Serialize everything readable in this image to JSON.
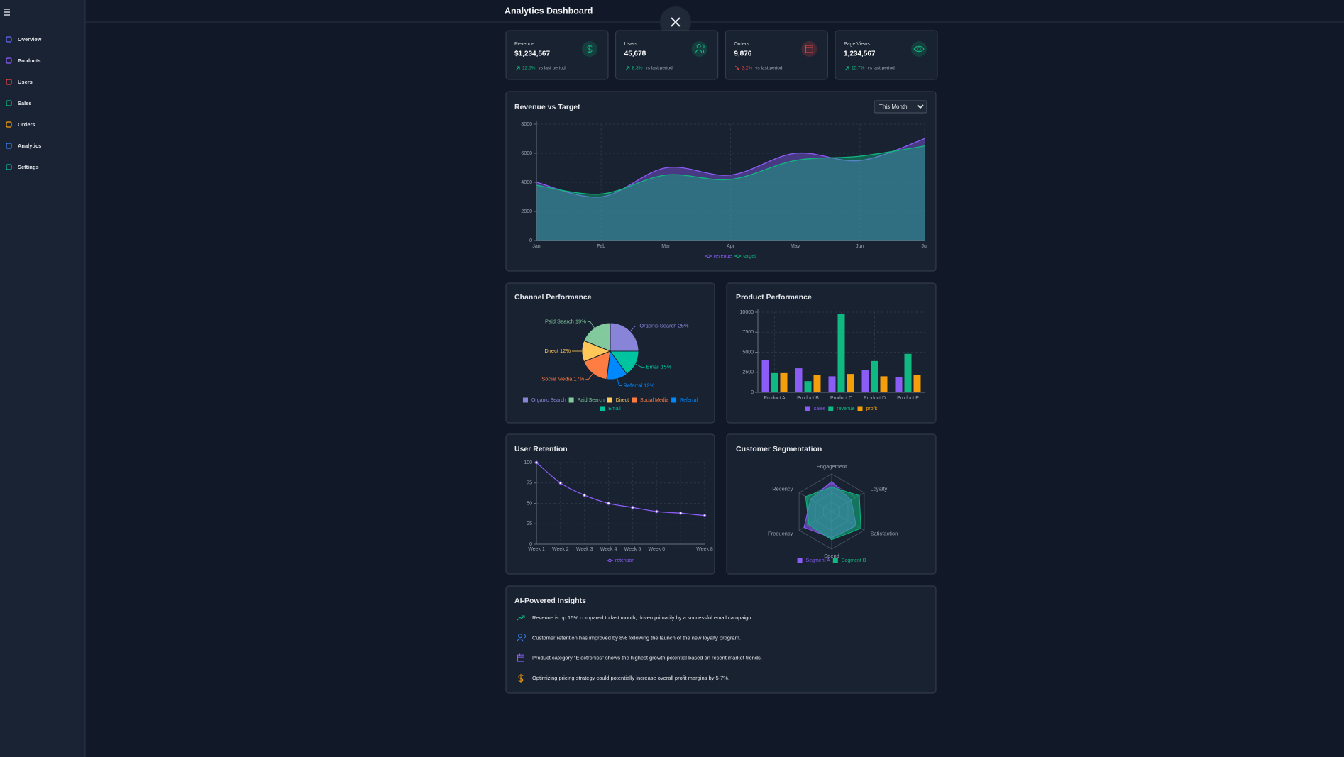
{
  "sidebar": {
    "nav": [
      "Overview",
      "Products",
      "Users",
      "Sales",
      "Orders",
      "Analytics",
      "Settings"
    ]
  },
  "header": {
    "title": "Analytics Dashboard"
  },
  "kpis": [
    {
      "label": "Revenue",
      "value": "$1,234,567",
      "change": "12.5%",
      "note": "vs last period",
      "trend": "up"
    },
    {
      "label": "Users",
      "value": "45,678",
      "change": "8.3%",
      "note": "vs last period",
      "trend": "up"
    },
    {
      "label": "Orders",
      "value": "9,876",
      "change": "3.2%",
      "note": "vs last period",
      "trend": "down"
    },
    {
      "label": "Page Views",
      "value": "1,234,567",
      "change": "15.7%",
      "note": "vs last period",
      "trend": "up"
    }
  ],
  "chart_data": [
    {
      "type": "area",
      "title": "Revenue vs Target",
      "filter": "This Month",
      "categories": [
        "Jan",
        "Feb",
        "Mar",
        "Apr",
        "May",
        "Jun",
        "Jul"
      ],
      "series": [
        {
          "name": "revenue",
          "color": "#8b5cf6",
          "values": [
            4000,
            3000,
            5000,
            4500,
            6000,
            5500,
            7000
          ]
        },
        {
          "name": "target",
          "color": "#10b981",
          "values": [
            3800,
            3200,
            4500,
            4200,
            5500,
            5800,
            6500
          ]
        }
      ],
      "ylim": [
        0,
        8000
      ],
      "yticks": [
        0,
        2000,
        4000,
        6000,
        8000
      ],
      "grid": true
    },
    {
      "type": "pie",
      "title": "Channel Performance",
      "categories": [
        "Organic Search",
        "Paid Search",
        "Direct",
        "Social Media",
        "Referral",
        "Email"
      ],
      "values": [
        25,
        19,
        12,
        17,
        12,
        15
      ],
      "value_labels": [
        "Organic Search 25%",
        "Paid Search 19%",
        "Direct 12%",
        "Social Media 17%",
        "Referral 12%",
        "Email 15%"
      ],
      "colors": [
        "#8884d8",
        "#82ca9d",
        "#ffc658",
        "#ff7c43",
        "#0088fe",
        "#00c49f"
      ]
    },
    {
      "type": "bar",
      "title": "Product Performance",
      "categories": [
        "Product A",
        "Product B",
        "Product C",
        "Product D",
        "Product E"
      ],
      "series": [
        {
          "name": "sales",
          "color": "#8b5cf6",
          "values": [
            4000,
            3000,
            2000,
            2780,
            1890
          ]
        },
        {
          "name": "revenue",
          "color": "#10b981",
          "values": [
            2400,
            1398,
            9800,
            3908,
            4800
          ]
        },
        {
          "name": "profit",
          "color": "#f59e0b",
          "values": [
            2400,
            2210,
            2290,
            2000,
            2181
          ]
        }
      ],
      "ylim": [
        0,
        10000
      ],
      "yticks": [
        0,
        2500,
        5000,
        7500,
        10000
      ],
      "grid": true
    },
    {
      "type": "line",
      "title": "User Retention",
      "categories": [
        "Week 1",
        "Week 2",
        "Week 3",
        "Week 4",
        "Week 5",
        "Week 6",
        null,
        "Week 8"
      ],
      "series": [
        {
          "name": "retention",
          "color": "#8b5cf6",
          "values": [
            100,
            75,
            60,
            50,
            45,
            40,
            38,
            35
          ]
        }
      ],
      "ylim": [
        0,
        100
      ],
      "yticks": [
        0,
        25,
        50,
        75,
        100
      ],
      "grid": true
    },
    {
      "type": "radar",
      "title": "Customer Segmentation",
      "categories": [
        "Engagement",
        "Loyalty",
        "Satisfaction",
        "Spend",
        "Frequency",
        "Recency"
      ],
      "series": [
        {
          "name": "Segment A",
          "color": "#8b5cf6",
          "values": [
            80,
            60,
            75,
            70,
            85,
            65
          ]
        },
        {
          "name": "Segment B",
          "color": "#10b981",
          "values": [
            65,
            85,
            90,
            75,
            70,
            80
          ]
        }
      ],
      "rlim": [
        0,
        100
      ]
    }
  ],
  "insights": {
    "title": "AI-Powered Insights",
    "items": [
      "Revenue is up 15% compared to last month, driven primarily by a successful email campaign.",
      "Customer retention has improved by 8% following the launch of the new loyalty program.",
      "Product category \"Electronics\" shows the highest growth potential based on recent market trends.",
      "Optimizing pricing strategy could potentially increase overall profit margins by 5-7%."
    ]
  }
}
